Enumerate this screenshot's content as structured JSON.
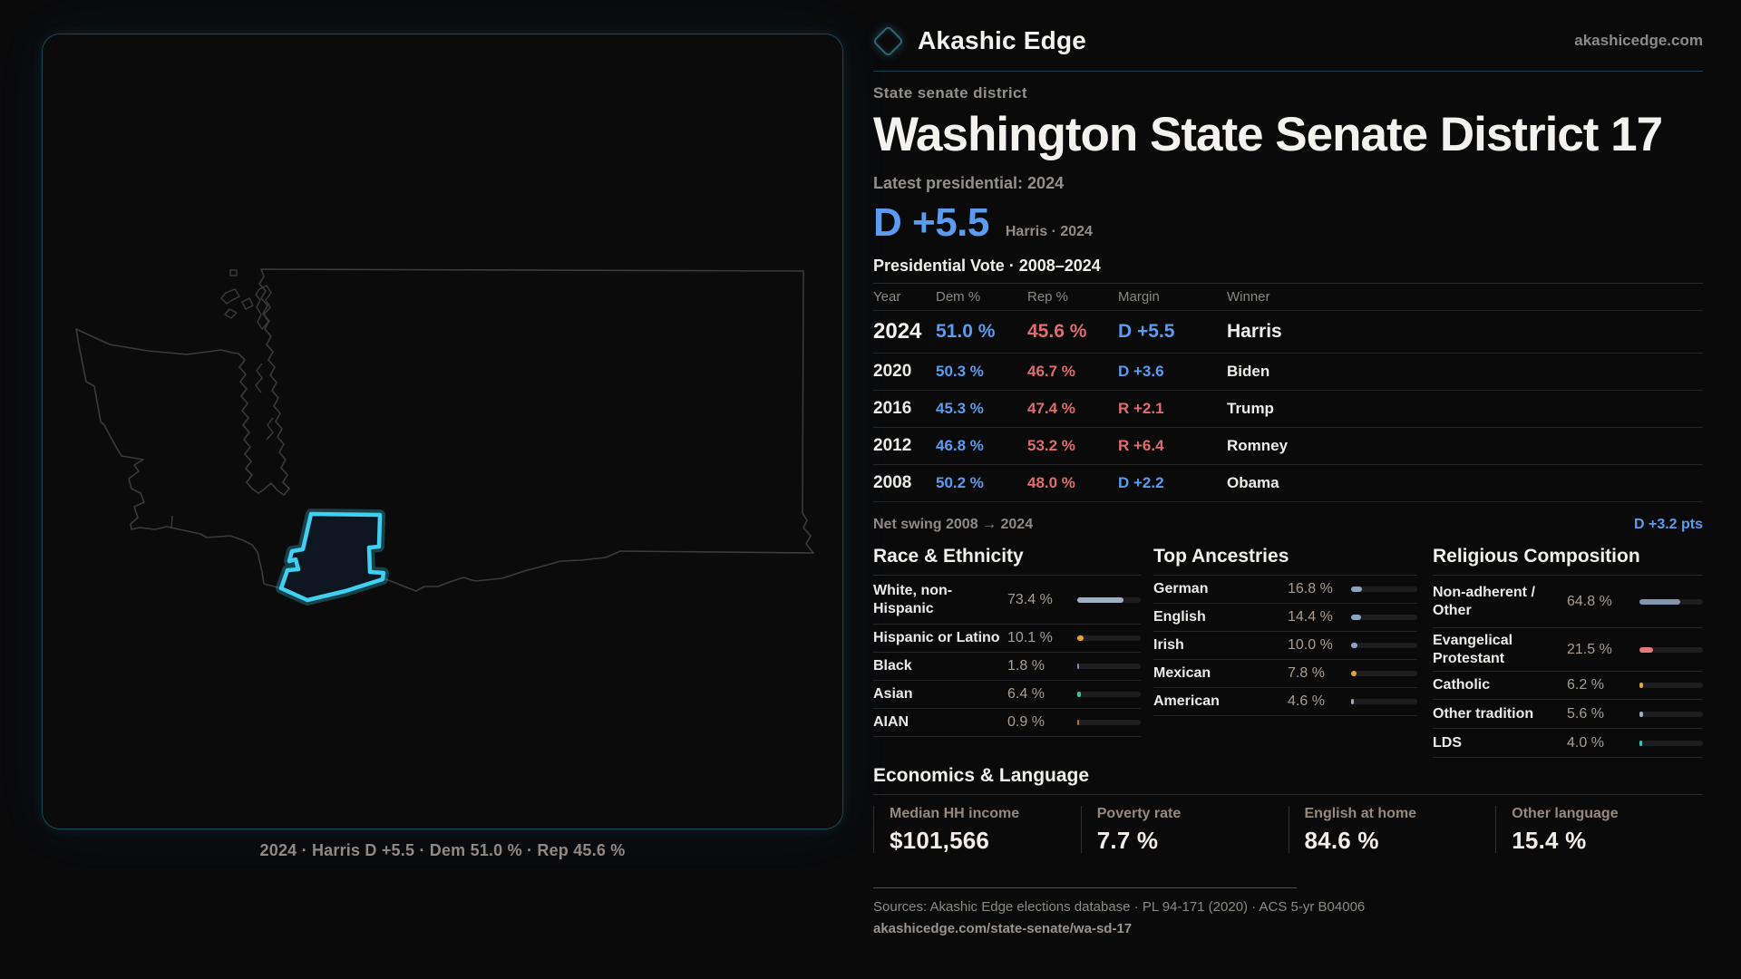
{
  "brand": {
    "name": "Akashic Edge",
    "domain": "akashicedge.com"
  },
  "map": {
    "caption": "2024 · Harris D +5.5 · Dem 51.0 % · Rep 45.6 %"
  },
  "header": {
    "kicker": "State senate district",
    "title": "Washington State Senate District 17",
    "latest_label": "Latest presidential: 2024",
    "margin_value": "D +5.5",
    "margin_caption": "Harris · 2024"
  },
  "table": {
    "title": "Presidential Vote · 2008–2024",
    "columns": [
      "Year",
      "Dem %",
      "Rep %",
      "Margin",
      "Winner"
    ],
    "rows": [
      {
        "year": "2024",
        "dem": "51.0 %",
        "rep": "45.6 %",
        "margin": "D +5.5",
        "margin_party": "D",
        "winner": "Harris",
        "big": true
      },
      {
        "year": "2020",
        "dem": "50.3 %",
        "rep": "46.7 %",
        "margin": "D +3.6",
        "margin_party": "D",
        "winner": "Biden",
        "big": false
      },
      {
        "year": "2016",
        "dem": "45.3 %",
        "rep": "47.4 %",
        "margin": "R +2.1",
        "margin_party": "R",
        "winner": "Trump",
        "big": false
      },
      {
        "year": "2012",
        "dem": "46.8 %",
        "rep": "53.2 %",
        "margin": "R +6.4",
        "margin_party": "R",
        "winner": "Romney",
        "big": false
      },
      {
        "year": "2008",
        "dem": "50.2 %",
        "rep": "48.0 %",
        "margin": "D +2.2",
        "margin_party": "D",
        "winner": "Obama",
        "big": false
      }
    ]
  },
  "net_swing": {
    "label": "Net swing 2008 → 2024",
    "value": "D +3.2 pts"
  },
  "demographics": {
    "columns": [
      {
        "key": "race",
        "title": "Race & Ethnicity",
        "items": [
          {
            "label": "White, non-Hispanic",
            "value": "73.4 %",
            "pct": 73.4,
            "color": "#9fb0c4",
            "tall": true
          },
          {
            "label": "Hispanic or Latino",
            "value": "10.1 %",
            "pct": 10.1,
            "color": "#e2a23c",
            "tall": false
          },
          {
            "label": "Black",
            "value": "1.8 %",
            "pct": 1.8,
            "color": "#8b85d6",
            "tall": false
          },
          {
            "label": "Asian",
            "value": "6.4 %",
            "pct": 6.4,
            "color": "#37c592",
            "tall": false
          },
          {
            "label": "AIAN",
            "value": "0.9 %",
            "pct": 0.9,
            "color": "#bb6f35",
            "tall": false
          }
        ]
      },
      {
        "key": "ancestries",
        "title": "Top Ancestries",
        "items": [
          {
            "label": "German",
            "value": "16.8 %",
            "pct": 16.8,
            "color": "#8ba3c2",
            "tall": false
          },
          {
            "label": "English",
            "value": "14.4 %",
            "pct": 14.4,
            "color": "#8ba3c2",
            "tall": false
          },
          {
            "label": "Irish",
            "value": "10.0 %",
            "pct": 10.0,
            "color": "#8ba3c2",
            "tall": false
          },
          {
            "label": "Mexican",
            "value": "7.8 %",
            "pct": 7.8,
            "color": "#e0a53a",
            "tall": false
          },
          {
            "label": "American",
            "value": "4.6 %",
            "pct": 4.6,
            "color": "#9aa7b8",
            "tall": false
          }
        ]
      },
      {
        "key": "religion",
        "title": "Religious Composition",
        "items": [
          {
            "label": "Non-adherent / Other",
            "value": "64.8 %",
            "pct": 64.8,
            "color": "#8496ad",
            "tall": true
          },
          {
            "label": "Evangelical Protestant",
            "value": "21.5 %",
            "pct": 21.5,
            "color": "#e4787f",
            "tall": true
          },
          {
            "label": "Catholic",
            "value": "6.2 %",
            "pct": 6.2,
            "color": "#dfa43c",
            "tall": false
          },
          {
            "label": "Other tradition",
            "value": "5.6 %",
            "pct": 5.6,
            "color": "#9fb0c0",
            "tall": false
          },
          {
            "label": "LDS",
            "value": "4.0 %",
            "pct": 4.0,
            "color": "#3cc8c2",
            "tall": false
          }
        ]
      }
    ]
  },
  "economics": {
    "title": "Economics & Language",
    "stats": [
      {
        "label": "Median HH income",
        "value": "$101,566"
      },
      {
        "label": "Poverty rate",
        "value": "7.7 %"
      },
      {
        "label": "English at home",
        "value": "84.6 %"
      },
      {
        "label": "Other language",
        "value": "15.4 %"
      }
    ]
  },
  "footer": {
    "sources": "Sources: Akashic Edge elections database · PL 94-171 (2020) · ACS 5-yr B04006",
    "permalink": "akashicedge.com/state-senate/wa-sd-17"
  },
  "colors": {
    "accent_cyan": "#3fd0f2",
    "dem_blue": "#5b9bf0",
    "rep_red": "#e06d6d",
    "background": "#0a0a0b"
  }
}
